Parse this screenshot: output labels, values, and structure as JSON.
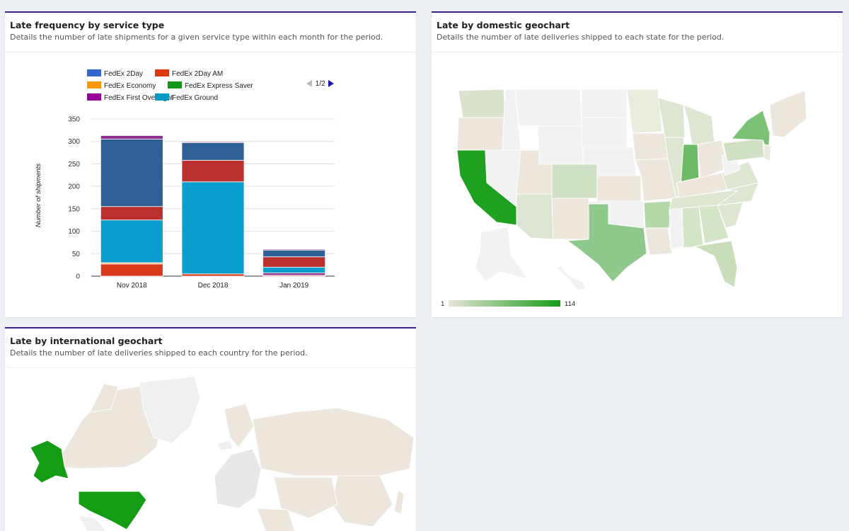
{
  "freq_card": {
    "title": "Late frequency by service type",
    "subtitle": "Details the number of late shipments for a given service type within each month for the period.",
    "legend_page": "1/2"
  },
  "domestic_card": {
    "title": "Late by domestic geochart",
    "subtitle": "Details the number of late deliveries shipped to each state for the period.",
    "scale_min": "1",
    "scale_max": "114",
    "scale_colors": [
      "#e8e4d8",
      "#149c14"
    ]
  },
  "intl_card": {
    "title": "Late by international geochart",
    "subtitle": "Details the number of late deliveries shipped to each country for the period."
  },
  "chart_data": {
    "type": "bar",
    "stacked": true,
    "categories": [
      "Nov 2018",
      "Dec 2018",
      "Jan 2019"
    ],
    "ylabel": "Number of shipments",
    "ylim": [
      0,
      350
    ],
    "yticks": [
      0,
      50,
      100,
      150,
      200,
      250,
      300,
      350
    ],
    "grid": true,
    "legend_position": "top",
    "series": [
      {
        "name": "FedEx 2Day",
        "legend_color": "#3366cc",
        "bar_color": "#2e5f95",
        "values": [
          0,
          0,
          0
        ]
      },
      {
        "name": "FedEx 2Day AM",
        "legend_color": "#dc3912",
        "bar_color": "#d8391a",
        "values": [
          27,
          5,
          2
        ]
      },
      {
        "name": "FedEx Economy",
        "legend_color": "#ff9900",
        "bar_color": "#f3a64a",
        "values": [
          3,
          0,
          0
        ]
      },
      {
        "name": "FedEx Express Saver",
        "legend_color": "#109618",
        "bar_color": "#109618",
        "values": [
          0,
          0,
          0
        ]
      },
      {
        "name": "FedEx First Overnight",
        "legend_color": "#990099",
        "bar_color": "#8e2f8f",
        "values": [
          0,
          0,
          5
        ]
      },
      {
        "name": "FedEx Ground",
        "legend_color": "#0099c6",
        "bar_color": "#089fcf",
        "values": [
          95,
          205,
          13
        ]
      },
      {
        "name": "",
        "legend_color": "",
        "bar_color": "#b9302f",
        "values": [
          30,
          48,
          23
        ]
      },
      {
        "name": "",
        "legend_color": "",
        "bar_color": "#2e5f95",
        "values": [
          150,
          39,
          15
        ]
      },
      {
        "name": "",
        "legend_color": "",
        "bar_color": "#8e2f8f",
        "values": [
          8,
          2,
          2
        ]
      }
    ]
  }
}
